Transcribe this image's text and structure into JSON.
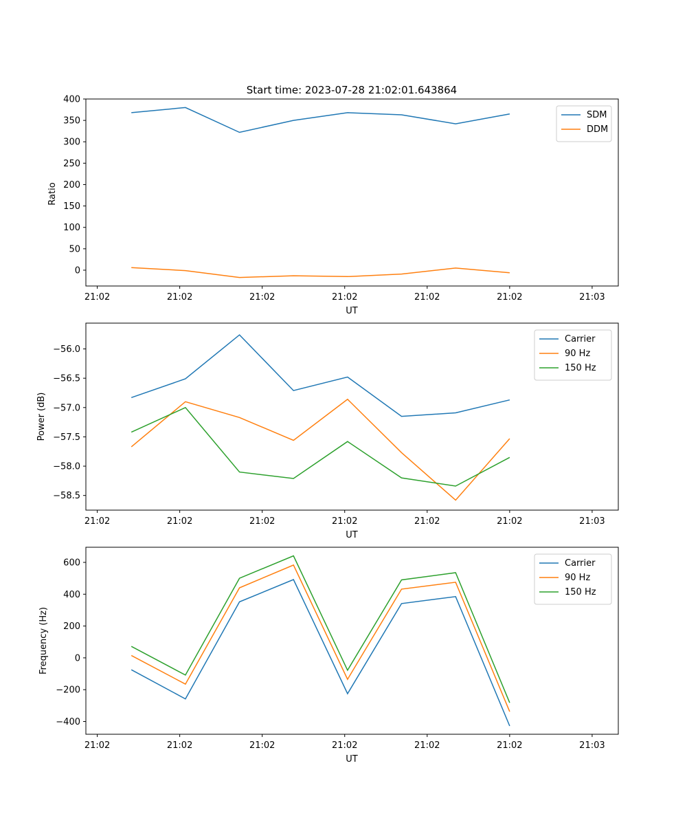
{
  "chart_data": [
    {
      "type": "line",
      "title": "Start time: 2023-07-28 21:02:01.643864",
      "xlabel": "UT",
      "ylabel": "Ratio",
      "xlim": [
        0,
        9.36
      ],
      "ylim": [
        -37,
        400
      ],
      "x": [
        0.8,
        1.75,
        2.7,
        3.65,
        4.6,
        5.55,
        6.5,
        7.45
      ],
      "x_ticks": [
        0.2,
        1.65,
        3.1,
        4.55,
        6.0,
        7.45,
        8.9
      ],
      "x_tick_labels": [
        "21:02",
        "21:02",
        "21:02",
        "21:02",
        "21:02",
        "21:02",
        "21:03"
      ],
      "y_ticks": [
        0,
        50,
        100,
        150,
        200,
        250,
        300,
        350,
        400
      ],
      "y_tick_labels": [
        "0",
        "50",
        "100",
        "150",
        "200",
        "250",
        "300",
        "350",
        "400"
      ],
      "legend": "top-right",
      "series": [
        {
          "name": "SDM",
          "color": "#1f77b4",
          "values": [
            368,
            380,
            322,
            350,
            368,
            363,
            342,
            365
          ]
        },
        {
          "name": "DDM",
          "color": "#ff7f0e",
          "values": [
            6,
            -1,
            -17,
            -13,
            -15,
            -9,
            5,
            -6
          ]
        }
      ]
    },
    {
      "type": "line",
      "title": "",
      "xlabel": "UT",
      "ylabel": "Power (dB)",
      "xlim": [
        0,
        9.36
      ],
      "ylim": [
        -58.75,
        -55.56
      ],
      "x": [
        0.8,
        1.75,
        2.7,
        3.65,
        4.6,
        5.55,
        6.5,
        7.45
      ],
      "x_ticks": [
        0.2,
        1.65,
        3.1,
        4.55,
        6.0,
        7.45,
        8.9
      ],
      "x_tick_labels": [
        "21:02",
        "21:02",
        "21:02",
        "21:02",
        "21:02",
        "21:02",
        "21:03"
      ],
      "y_ticks": [
        -58.5,
        -58.0,
        -57.5,
        -57.0,
        -56.5,
        -56.0
      ],
      "y_tick_labels": [
        "−58.5",
        "−58.0",
        "−57.5",
        "−57.0",
        "−56.5",
        "−56.0"
      ],
      "legend": "top-right",
      "series": [
        {
          "name": "Carrier",
          "color": "#1f77b4",
          "values": [
            -56.83,
            -56.51,
            -55.76,
            -56.71,
            -56.48,
            -57.15,
            -57.09,
            -56.87
          ]
        },
        {
          "name": "90 Hz",
          "color": "#ff7f0e",
          "values": [
            -57.67,
            -56.9,
            -57.17,
            -57.56,
            -56.86,
            -57.77,
            -58.58,
            -57.53
          ]
        },
        {
          "name": "150 Hz",
          "color": "#2ca02c",
          "values": [
            -57.42,
            -57.0,
            -58.1,
            -58.21,
            -57.58,
            -58.2,
            -58.34,
            -57.85
          ]
        }
      ]
    },
    {
      "type": "line",
      "title": "",
      "xlabel": "UT",
      "ylabel": "Frequency (Hz)",
      "xlim": [
        0,
        9.36
      ],
      "ylim": [
        -480,
        695
      ],
      "x": [
        0.8,
        1.75,
        2.7,
        3.65,
        4.6,
        5.55,
        6.5,
        7.45
      ],
      "x_ticks": [
        0.2,
        1.65,
        3.1,
        4.55,
        6.0,
        7.45,
        8.9
      ],
      "x_tick_labels": [
        "21:02",
        "21:02",
        "21:02",
        "21:02",
        "21:02",
        "21:02",
        "21:03"
      ],
      "y_ticks": [
        -400,
        -200,
        0,
        200,
        400,
        600
      ],
      "y_tick_labels": [
        "−400",
        "−200",
        "0",
        "200",
        "400",
        "600"
      ],
      "legend": "top-right",
      "series": [
        {
          "name": "Carrier",
          "color": "#1f77b4",
          "values": [
            -75,
            -258,
            352,
            492,
            -225,
            341,
            385,
            -428
          ]
        },
        {
          "name": "90 Hz",
          "color": "#ff7f0e",
          "values": [
            15,
            -165,
            440,
            583,
            -135,
            432,
            475,
            -338
          ]
        },
        {
          "name": "150 Hz",
          "color": "#2ca02c",
          "values": [
            72,
            -108,
            500,
            641,
            -78,
            490,
            535,
            -282
          ]
        }
      ]
    }
  ]
}
